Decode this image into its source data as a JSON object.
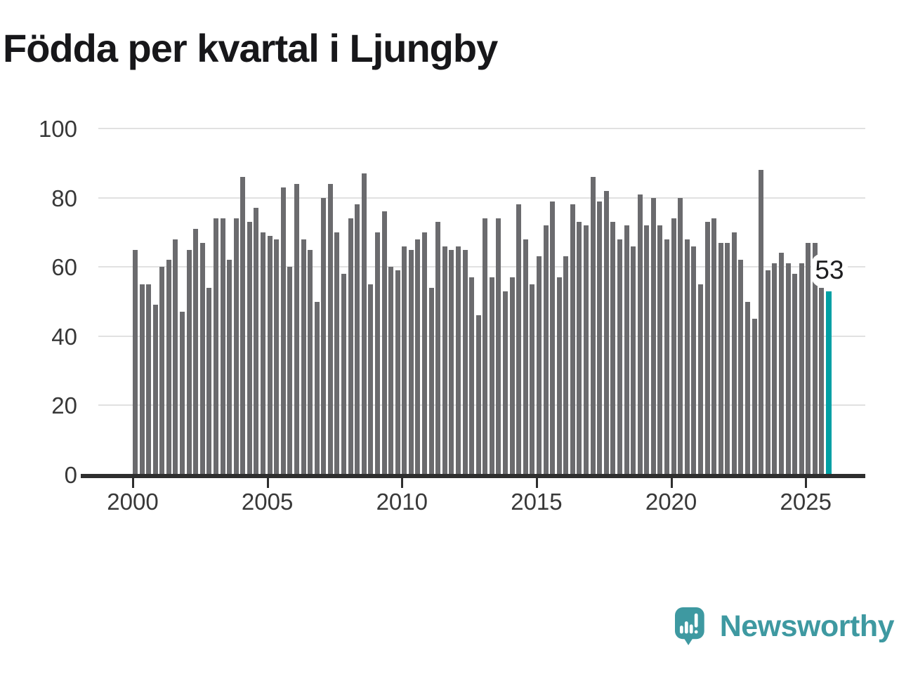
{
  "title": "Födda per kvartal i Ljungby",
  "chart_data": {
    "type": "bar",
    "title": "Födda per kvartal i Ljungby",
    "frequency": "quarterly",
    "start_period": "2000-Q1",
    "end_period": "2025-Q4",
    "values": [
      65,
      55,
      55,
      49,
      60,
      62,
      68,
      47,
      65,
      71,
      67,
      54,
      74,
      74,
      62,
      74,
      86,
      73,
      77,
      70,
      69,
      68,
      83,
      60,
      84,
      68,
      65,
      50,
      80,
      84,
      70,
      58,
      74,
      78,
      87,
      55,
      70,
      76,
      60,
      59,
      66,
      65,
      68,
      70,
      54,
      73,
      66,
      65,
      66,
      65,
      57,
      46,
      74,
      57,
      74,
      53,
      57,
      78,
      68,
      55,
      63,
      72,
      79,
      57,
      63,
      78,
      73,
      72,
      86,
      79,
      82,
      73,
      68,
      72,
      66,
      81,
      72,
      80,
      72,
      68,
      74,
      80,
      68,
      66,
      55,
      73,
      74,
      67,
      67,
      70,
      62,
      50,
      45,
      88,
      59,
      61,
      64,
      61,
      58,
      61,
      67,
      67,
      54,
      53
    ],
    "highlight_last_value": 53,
    "annotation": {
      "text": "53"
    },
    "x_tick_labels": [
      "2000",
      "2005",
      "2010",
      "2015",
      "2020",
      "2025"
    ],
    "y_tick_labels": [
      "0",
      "20",
      "40",
      "60",
      "80",
      "100"
    ],
    "y_ticks": [
      0,
      20,
      40,
      60,
      80,
      100
    ],
    "ylim": [
      0,
      100
    ],
    "grid": "horizontal",
    "legend": "none",
    "colors": {
      "bar": "#6b6b6e",
      "highlight": "#00a0a4",
      "grid": "#e1e1e1",
      "axis": "#2e2e2e",
      "tick_label": "#383838",
      "title": "#17171a",
      "brand": "#3e99a1"
    }
  },
  "footer": {
    "brand": "Newsworthy",
    "logo_icon": "speech-bubble-bar-chart-icon"
  }
}
